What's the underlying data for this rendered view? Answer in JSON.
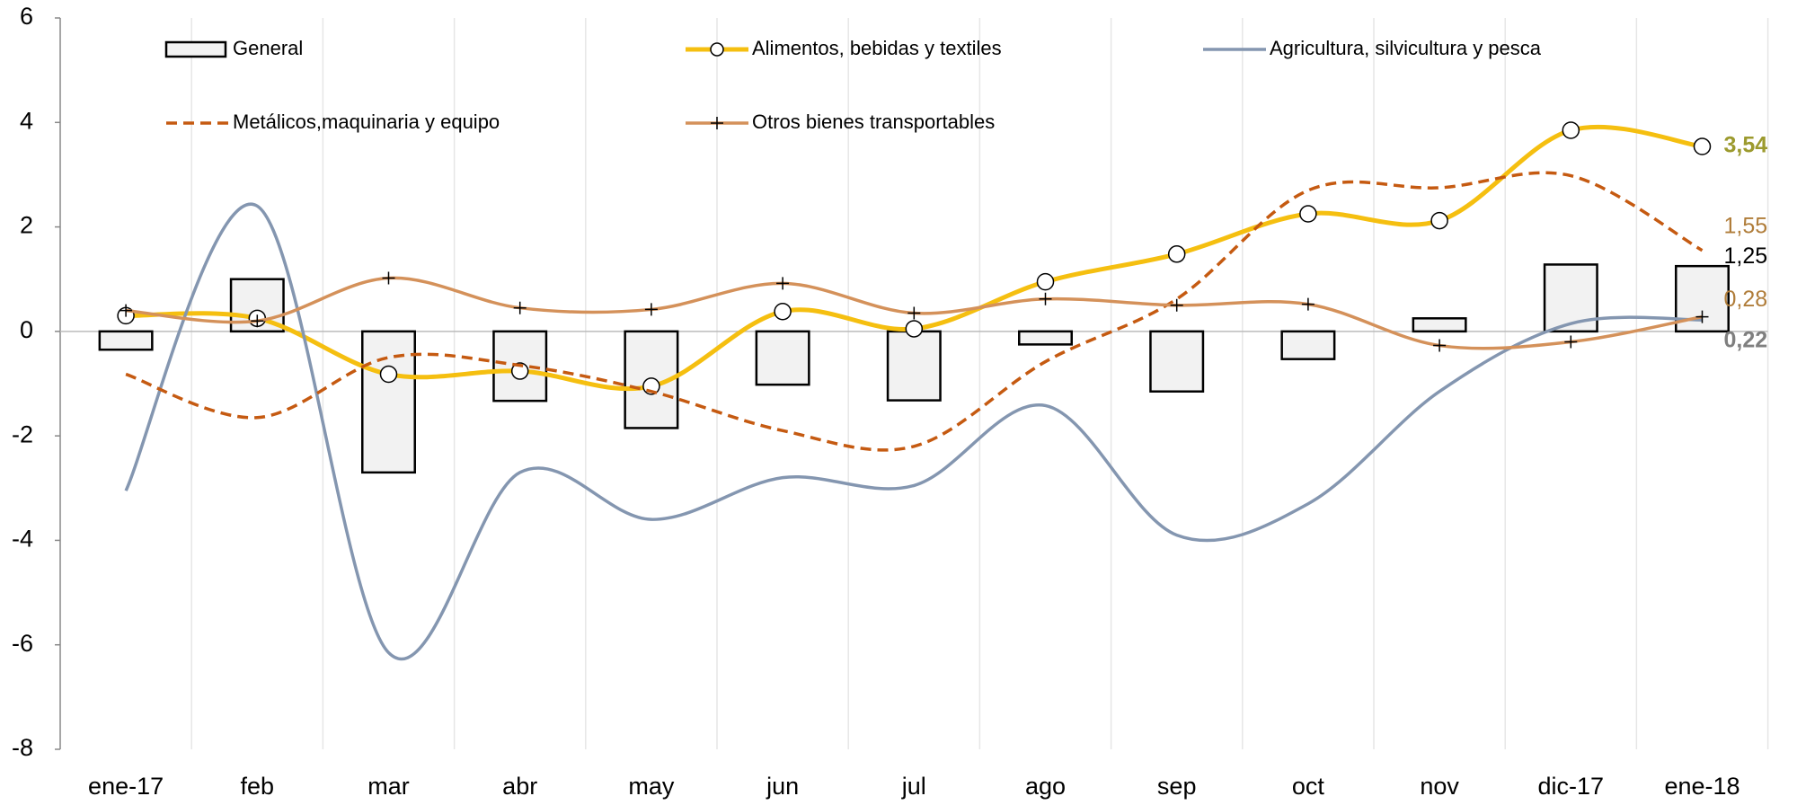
{
  "chart_data": {
    "type": "bar",
    "categories": [
      "ene-17",
      "feb",
      "mar",
      "abr",
      "may",
      "jun",
      "jul",
      "ago",
      "sep",
      "oct",
      "nov",
      "dic-17",
      "ene-18"
    ],
    "ylim": [
      -8,
      6
    ],
    "yticks": [
      -8,
      -6,
      -4,
      -2,
      0,
      2,
      4,
      6
    ],
    "series": [
      {
        "name": "General",
        "type": "bar",
        "color": "#f2f2f2",
        "values": [
          -0.35,
          1.0,
          -2.7,
          -1.33,
          -1.85,
          -1.02,
          -1.32,
          -0.25,
          -1.15,
          -0.53,
          0.25,
          1.28,
          1.25
        ],
        "value_labels": [
          null,
          null,
          null,
          null,
          null,
          null,
          null,
          null,
          null,
          null,
          null,
          null,
          "1,25"
        ],
        "label_color": "#000000"
      },
      {
        "name": "Alimentos, bebidas y textiles",
        "type": "line",
        "marker": "circle",
        "color": "#f5bf10",
        "values": [
          0.3,
          0.25,
          -0.82,
          -0.76,
          -1.05,
          0.38,
          0.05,
          0.95,
          1.48,
          2.25,
          2.12,
          3.85,
          3.54
        ],
        "value_labels": [
          null,
          null,
          null,
          null,
          null,
          null,
          null,
          null,
          null,
          null,
          null,
          null,
          "3,54"
        ],
        "label_color": "#9c9a2e"
      },
      {
        "name": "Agricultura, silvicultura y pesca",
        "type": "line",
        "color": "#8496b0",
        "values": [
          -3.05,
          2.4,
          -6.15,
          -2.7,
          -3.6,
          -2.8,
          -2.95,
          -1.42,
          -3.9,
          -3.3,
          -1.15,
          0.15,
          0.22
        ],
        "value_labels": [
          null,
          null,
          null,
          null,
          null,
          null,
          null,
          null,
          null,
          null,
          null,
          null,
          "0,22"
        ],
        "label_color": "#7f7f7f"
      },
      {
        "name": "Metálicos,maquinaria y equipo",
        "type": "line",
        "dash": true,
        "color": "#c55a11",
        "values": [
          -0.82,
          -1.65,
          -0.5,
          -0.65,
          -1.15,
          -1.9,
          -2.2,
          -0.58,
          0.62,
          2.7,
          2.75,
          2.98,
          1.55
        ],
        "value_labels": [
          null,
          null,
          null,
          null,
          null,
          null,
          null,
          null,
          null,
          null,
          null,
          null,
          "1,55"
        ],
        "label_color": "#b07d3a"
      },
      {
        "name": "Otros bienes transportables",
        "type": "line",
        "marker": "plus",
        "color": "#d4915a",
        "values": [
          0.4,
          0.2,
          1.02,
          0.45,
          0.42,
          0.92,
          0.35,
          0.62,
          0.5,
          0.52,
          -0.27,
          -0.2,
          0.28
        ],
        "value_labels": [
          null,
          null,
          null,
          null,
          null,
          null,
          null,
          null,
          null,
          null,
          null,
          null,
          "0,28"
        ],
        "label_color": "#b07d3a"
      }
    ]
  }
}
